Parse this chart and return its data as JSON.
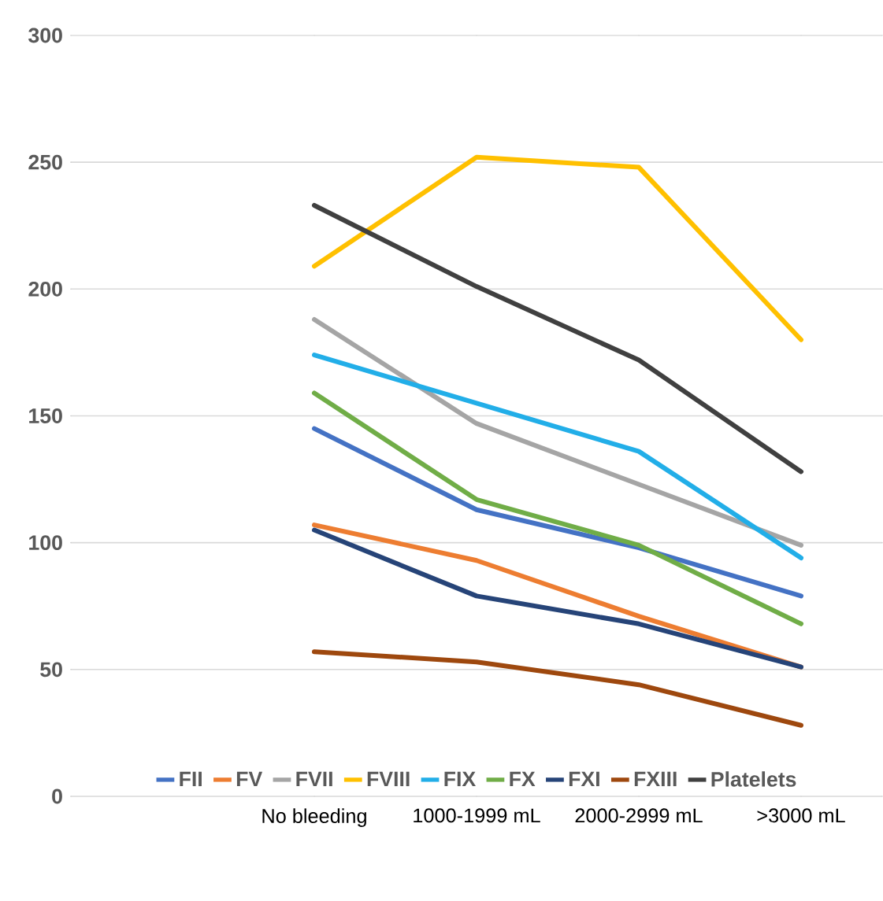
{
  "chart_data": {
    "type": "line",
    "categories": [
      null,
      "No bleeding",
      "1000-1999 mL",
      "2000-2999 mL",
      ">3000 mL"
    ],
    "ylim": [
      0,
      300
    ],
    "yticks": [
      0,
      50,
      100,
      150,
      200,
      250,
      300
    ],
    "grid": "y",
    "legend": "bottom",
    "marker": "none",
    "line_style": "solid",
    "series": [
      {
        "name": "FII",
        "color": "#4472c4",
        "values": [
          null,
          145,
          113,
          98,
          79
        ]
      },
      {
        "name": "FV",
        "color": "#ed7d31",
        "values": [
          null,
          107,
          93,
          71,
          51
        ]
      },
      {
        "name": "FVII",
        "color": "#a5a5a5",
        "values": [
          null,
          188,
          147,
          123,
          99
        ]
      },
      {
        "name": "FVIII",
        "color": "#ffc000",
        "values": [
          null,
          209,
          252,
          248,
          180
        ]
      },
      {
        "name": "FIX",
        "color": "#22aee8",
        "values": [
          null,
          174,
          155,
          136,
          94
        ]
      },
      {
        "name": "FX",
        "color": "#70ad47",
        "values": [
          null,
          159,
          117,
          99,
          68
        ]
      },
      {
        "name": "FXI",
        "color": "#264478",
        "values": [
          null,
          105,
          79,
          68,
          51
        ]
      },
      {
        "name": "FXIII",
        "color": "#9e480e",
        "values": [
          null,
          57,
          53,
          44,
          28
        ]
      },
      {
        "name": "Platelets",
        "color": "#404040",
        "values": [
          null,
          233,
          201,
          172,
          128
        ]
      }
    ]
  }
}
